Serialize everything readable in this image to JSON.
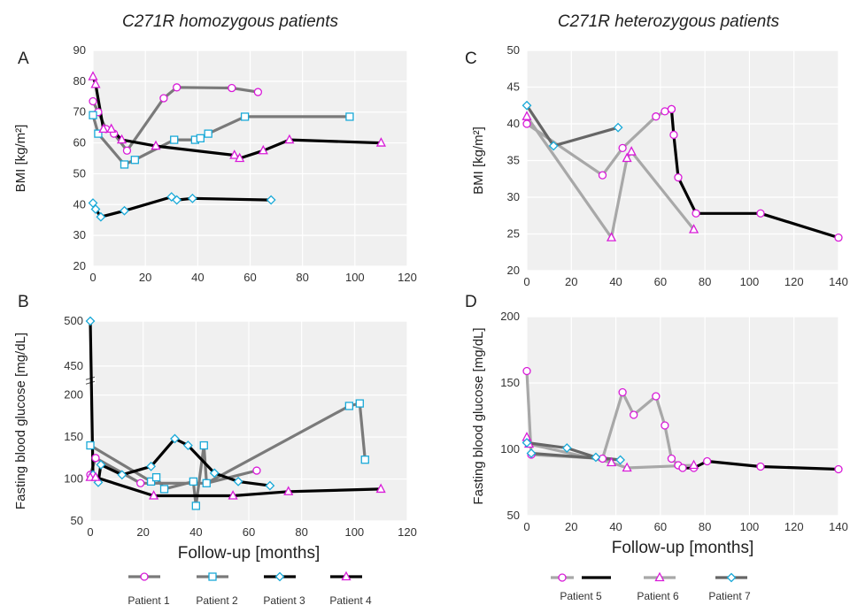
{
  "titles": {
    "left": "C271R homozygous patients",
    "right": "C271R heterozygous patients"
  },
  "colors": {
    "background": "#f0f0f0",
    "grid": "#ffffff",
    "marker_magenta": "#d81bd8",
    "marker_cyan": "#19a9d8",
    "gray": "#7a7a7a",
    "light_gray": "#a8a8a8",
    "black": "#000000"
  },
  "legends": {
    "left": [
      "Patient 1",
      "Patient 2",
      "Patient 3",
      "Patient 4"
    ],
    "right": [
      "Patient 5",
      "Patient 6",
      "Patient 7"
    ]
  },
  "chart_data": [
    {
      "panel": "A",
      "type": "line",
      "ylabel": "BMI [kg/m²]",
      "xlim": [
        0,
        120
      ],
      "ylim": [
        20,
        90
      ],
      "xticks": [
        0,
        20,
        40,
        60,
        80,
        100,
        120
      ],
      "yticks": [
        20,
        30,
        40,
        50,
        60,
        70,
        80,
        90
      ],
      "grid": true,
      "series": [
        {
          "name": "Patient 1",
          "color": "#7a7a7a",
          "marker": "circle",
          "points": [
            [
              0,
              73.5
            ],
            [
              2,
              70
            ],
            [
              5,
              64.5
            ],
            [
              8,
              63
            ],
            [
              13,
              57.5
            ],
            [
              27,
              74.5
            ],
            [
              32,
              78
            ],
            [
              53,
              77.8
            ],
            [
              63,
              76.5
            ]
          ]
        },
        {
          "name": "Patient 2",
          "color": "#7a7a7a",
          "marker": "square",
          "points": [
            [
              0,
              69
            ],
            [
              2,
              63
            ],
            [
              12,
              53
            ],
            [
              16,
              54.5
            ],
            [
              31,
              61
            ],
            [
              39,
              61
            ],
            [
              41,
              61.5
            ],
            [
              44,
              63
            ],
            [
              58,
              68.5
            ],
            [
              98,
              68.5
            ]
          ]
        },
        {
          "name": "Patient 3",
          "color": "#000000",
          "marker": "diamond",
          "points": [
            [
              0,
              40.5
            ],
            [
              1,
              38.5
            ],
            [
              3,
              36
            ],
            [
              12,
              38
            ],
            [
              30,
              42.5
            ],
            [
              32,
              41.5
            ],
            [
              38,
              42
            ],
            [
              68,
              41.5
            ]
          ]
        },
        {
          "name": "Patient 4",
          "color": "#000000",
          "marker": "triangle",
          "points": [
            [
              0,
              81.5
            ],
            [
              1,
              79
            ],
            [
              4,
              64.5
            ],
            [
              7,
              64.5
            ],
            [
              11,
              61
            ],
            [
              24,
              59
            ],
            [
              54,
              56
            ],
            [
              56,
              55
            ],
            [
              65,
              57.5
            ],
            [
              75,
              61
            ],
            [
              110,
              60
            ]
          ]
        }
      ]
    },
    {
      "panel": "B",
      "type": "line",
      "ylabel": "Fasting blood glucose [mg/dL]",
      "xlabel": "Follow-up [months]",
      "xlim": [
        0,
        120
      ],
      "ylim": [
        50,
        500
      ],
      "axis_break": [
        200,
        450
      ],
      "xticks": [
        0,
        20,
        40,
        60,
        80,
        100,
        120
      ],
      "yticks": [
        50,
        100,
        150,
        200,
        450,
        500
      ],
      "grid": true,
      "series": [
        {
          "name": "Patient 1",
          "color": "#7a7a7a",
          "marker": "circle",
          "points": [
            [
              0,
              105
            ],
            [
              2,
              125
            ],
            [
              19,
              95
            ],
            [
              44,
              95
            ],
            [
              63,
              110
            ]
          ]
        },
        {
          "name": "Patient 2",
          "color": "#7a7a7a",
          "marker": "square",
          "points": [
            [
              0,
              140
            ],
            [
              23,
              97
            ],
            [
              25,
              102
            ],
            [
              28,
              88
            ],
            [
              39,
              97
            ],
            [
              40,
              68
            ],
            [
              43,
              140
            ],
            [
              44,
              95
            ],
            [
              98,
              187
            ],
            [
              102,
              190
            ],
            [
              104,
              123
            ]
          ]
        },
        {
          "name": "Patient 3",
          "color": "#000000",
          "marker": "diamond",
          "points": [
            [
              0,
              500
            ],
            [
              1,
              105
            ],
            [
              3,
              96
            ],
            [
              4,
              117
            ],
            [
              12,
              105
            ],
            [
              23,
              115
            ],
            [
              32,
              148
            ],
            [
              37,
              140
            ],
            [
              47,
              107
            ],
            [
              56,
              97
            ],
            [
              68,
              92
            ]
          ]
        },
        {
          "name": "Patient 4",
          "color": "#000000",
          "marker": "triangle",
          "points": [
            [
              0,
              102
            ],
            [
              2,
              102
            ],
            [
              24,
              80
            ],
            [
              54,
              80
            ],
            [
              75,
              85
            ],
            [
              110,
              88
            ]
          ]
        }
      ]
    },
    {
      "panel": "C",
      "type": "line",
      "ylabel": "BMI [kg/m²]",
      "xlim": [
        0,
        140
      ],
      "ylim": [
        20,
        50
      ],
      "xticks": [
        0,
        20,
        40,
        60,
        80,
        100,
        120,
        140
      ],
      "yticks": [
        20,
        25,
        30,
        35,
        40,
        45,
        50
      ],
      "grid": true,
      "series": [
        {
          "name": "Patient 5",
          "color": "#a8a8a8",
          "marker": "circle",
          "points": [
            [
              0,
              40
            ],
            [
              34,
              33
            ],
            [
              43,
              36.7
            ],
            [
              58,
              41
            ],
            [
              62,
              41.7
            ],
            [
              65,
              42
            ]
          ]
        },
        {
          "name": "Patient 5",
          "color": "#000000",
          "marker": "circle",
          "points": [
            [
              65,
              42
            ],
            [
              66,
              38.5
            ],
            [
              68,
              32.7
            ],
            [
              76,
              27.8
            ],
            [
              105,
              27.8
            ],
            [
              140,
              24.5
            ]
          ]
        },
        {
          "name": "Patient 6",
          "color": "#a8a8a8",
          "marker": "triangle",
          "points": [
            [
              0,
              41
            ],
            [
              38,
              24.5
            ],
            [
              45,
              35.3
            ],
            [
              47,
              36.2
            ],
            [
              75,
              25.6
            ]
          ]
        },
        {
          "name": "Patient 7",
          "color": "#666666",
          "marker": "diamond",
          "points": [
            [
              0,
              42.5
            ],
            [
              12,
              37
            ],
            [
              41,
              39.5
            ]
          ]
        }
      ]
    },
    {
      "panel": "D",
      "type": "line",
      "ylabel": "Fasting blood  glucose [mg/dL]",
      "xlabel": "Follow-up [months]",
      "xlim": [
        0,
        140
      ],
      "ylim": [
        50,
        200
      ],
      "xticks": [
        0,
        20,
        40,
        60,
        80,
        100,
        120,
        140
      ],
      "yticks": [
        50,
        100,
        150,
        200
      ],
      "grid": true,
      "series": [
        {
          "name": "Patient 5",
          "color": "#a8a8a8",
          "marker": "circle",
          "points": [
            [
              0,
              159
            ],
            [
              2,
              96
            ],
            [
              34,
              93
            ],
            [
              43,
              143
            ],
            [
              48,
              126
            ],
            [
              58,
              140
            ],
            [
              62,
              118
            ],
            [
              65,
              93
            ],
            [
              68,
              88
            ]
          ]
        },
        {
          "name": "Patient 5",
          "color": "#000000",
          "marker": "circle",
          "points": [
            [
              68,
              88
            ],
            [
              70,
              86
            ],
            [
              75,
              86
            ],
            [
              81,
              91
            ],
            [
              105,
              87
            ],
            [
              140,
              85
            ]
          ]
        },
        {
          "name": "Patient 6",
          "color": "#a8a8a8",
          "marker": "triangle",
          "points": [
            [
              0,
              109
            ],
            [
              1,
              104
            ],
            [
              38,
              90
            ],
            [
              45,
              86
            ],
            [
              75,
              88
            ]
          ]
        },
        {
          "name": "Patient 7",
          "color": "#666666",
          "marker": "diamond",
          "points": [
            [
              0,
              105
            ],
            [
              18,
              101
            ],
            [
              31,
              94
            ],
            [
              42,
              92
            ],
            [
              2,
              97
            ]
          ]
        }
      ]
    }
  ]
}
